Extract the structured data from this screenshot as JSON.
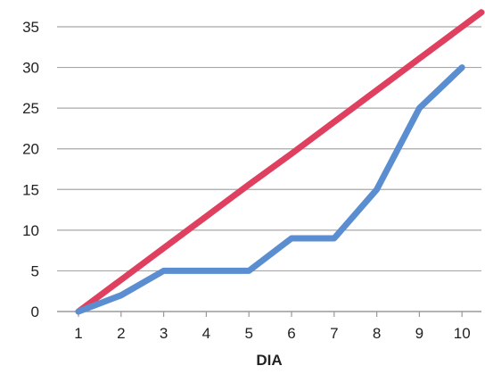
{
  "chart_data": {
    "type": "line",
    "title": "",
    "xlabel": "DIA",
    "ylabel": "",
    "x": [
      1,
      2,
      3,
      4,
      5,
      6,
      7,
      8,
      9,
      10
    ],
    "xlim": [
      1,
      10
    ],
    "ylim": [
      0,
      35
    ],
    "yticks": [
      0,
      5,
      10,
      15,
      20,
      25,
      30,
      35
    ],
    "grid": "horizontal",
    "legend": "none",
    "series": [
      {
        "color": "#e0405f",
        "values": [
          0,
          3.9,
          7.8,
          11.7,
          15.6,
          19.4,
          23.3,
          27.2,
          31.1,
          35
        ],
        "extends_beyond_last_tick": true
      },
      {
        "color": "#5b8ed0",
        "values": [
          0,
          2,
          5,
          5,
          5,
          9,
          9,
          15,
          25,
          30
        ]
      }
    ]
  }
}
